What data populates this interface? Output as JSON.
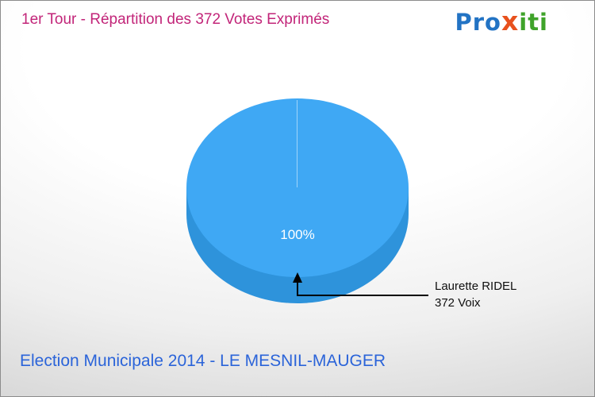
{
  "header": {
    "title": "1er Tour - Répartition des 372 Votes Exprimés",
    "color": "#C22579"
  },
  "logo": {
    "pro": "Pro",
    "x": "x",
    "iti": "iti",
    "color_pro": "#2273C4",
    "color_x": "#E8511D",
    "color_iti": "#3FA32A"
  },
  "chart_data": {
    "type": "pie",
    "style": "3d-pie",
    "title": "1er Tour - Répartition des 372 Votes Exprimés",
    "total_votes": 372,
    "slices": [
      {
        "label": "Laurette RIDEL",
        "votes": 372,
        "votes_label": "372 Voix",
        "percent": 100,
        "percent_label": "100%",
        "color": "#3FA8F4",
        "color_dark": "#2E93DB"
      }
    ],
    "legend_position": "right-annotation-with-arrow"
  },
  "annotation": {
    "name": "Laurette RIDEL",
    "votes": "372 Voix"
  },
  "footer": {
    "caption": "Election Municipale 2014 - LE MESNIL-MAUGER",
    "color": "#2B64D9"
  }
}
